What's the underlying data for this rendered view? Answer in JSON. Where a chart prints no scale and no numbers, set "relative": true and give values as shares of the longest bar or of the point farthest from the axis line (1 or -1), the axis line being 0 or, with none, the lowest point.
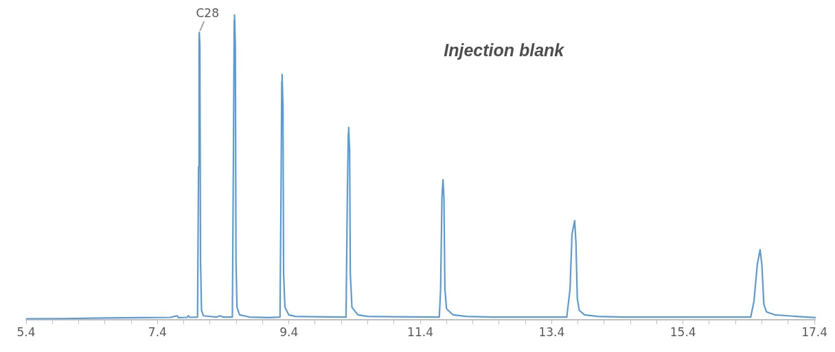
{
  "chart_data": {
    "type": "line",
    "title": "Injection blank",
    "relative": true,
    "grid": false,
    "legend": false,
    "marker": "none",
    "line_style": "solid",
    "xlim": [
      5.4,
      17.42
    ],
    "xticks": [
      5.4,
      {
        "value": 5.8,
        "label": null
      },
      {
        "value": 6.2,
        "label": null
      },
      {
        "value": 6.6,
        "label": null
      },
      {
        "value": 7.0,
        "label": null
      },
      7.4,
      {
        "value": 7.8,
        "label": null
      },
      {
        "value": 8.2,
        "label": null
      },
      {
        "value": 8.6,
        "label": null
      },
      {
        "value": 9.0,
        "label": null
      },
      9.4,
      {
        "value": 9.8,
        "label": null
      },
      {
        "value": 10.2,
        "label": null
      },
      {
        "value": 10.6,
        "label": null
      },
      {
        "value": 11.0,
        "label": null
      },
      11.4,
      {
        "value": 11.8,
        "label": null
      },
      {
        "value": 12.2,
        "label": null
      },
      {
        "value": 12.6,
        "label": null
      },
      {
        "value": 13.0,
        "label": null
      },
      13.4,
      {
        "value": 13.8,
        "label": null
      },
      {
        "value": 14.2,
        "label": null
      },
      {
        "value": 14.6,
        "label": null
      },
      {
        "value": 15.0,
        "label": null
      },
      15.4,
      {
        "value": 15.8,
        "label": null
      },
      {
        "value": 16.2,
        "label": null
      },
      {
        "value": 16.6,
        "label": null
      },
      {
        "value": 17.0,
        "label": null
      },
      17.4
    ],
    "annotations": [
      {
        "text": "C28",
        "x": 8.036,
        "y": 0.941
      }
    ],
    "series": [
      {
        "color": "#5b9bd5",
        "x": [
          5.4,
          6.0,
          6.6,
          7.2,
          7.6,
          7.7,
          7.72,
          7.85,
          7.87,
          7.89,
          8.01,
          8.025,
          8.033,
          8.036,
          8.045,
          8.055,
          8.07,
          8.1,
          8.3,
          8.35,
          8.4,
          8.54,
          8.555,
          8.568,
          8.573,
          8.585,
          8.595,
          8.61,
          8.65,
          8.8,
          9.1,
          9.265,
          9.28,
          9.292,
          9.297,
          9.31,
          9.32,
          9.34,
          9.4,
          9.5,
          9.8,
          10.27,
          10.29,
          10.305,
          10.31,
          10.325,
          10.335,
          10.36,
          10.45,
          10.6,
          11.0,
          11.69,
          11.71,
          11.73,
          11.746,
          11.76,
          11.775,
          11.8,
          11.9,
          12.1,
          12.5,
          13.63,
          13.68,
          13.71,
          13.75,
          13.77,
          13.79,
          13.82,
          13.9,
          14.1,
          14.5,
          16.43,
          16.48,
          16.53,
          16.573,
          16.6,
          16.63,
          16.67,
          16.8,
          17.0,
          17.2,
          17.42
        ],
        "values": [
          0.002,
          0.003,
          0.005,
          0.006,
          0.007,
          0.012,
          0.006,
          0.007,
          0.012,
          0.007,
          0.008,
          0.5,
          0.92,
          0.941,
          0.9,
          0.2,
          0.03,
          0.012,
          0.008,
          0.012,
          0.008,
          0.008,
          0.5,
          0.98,
          1.0,
          0.9,
          0.2,
          0.04,
          0.015,
          0.008,
          0.006,
          0.008,
          0.4,
          0.78,
          0.803,
          0.7,
          0.15,
          0.04,
          0.015,
          0.01,
          0.009,
          0.008,
          0.4,
          0.61,
          0.63,
          0.55,
          0.15,
          0.04,
          0.015,
          0.01,
          0.009,
          0.008,
          0.1,
          0.4,
          0.458,
          0.4,
          0.1,
          0.035,
          0.015,
          0.01,
          0.008,
          0.008,
          0.1,
          0.28,
          0.324,
          0.25,
          0.07,
          0.03,
          0.015,
          0.01,
          0.008,
          0.008,
          0.06,
          0.18,
          0.229,
          0.18,
          0.05,
          0.025,
          0.015,
          0.012,
          0.009,
          0.006
        ]
      }
    ]
  }
}
